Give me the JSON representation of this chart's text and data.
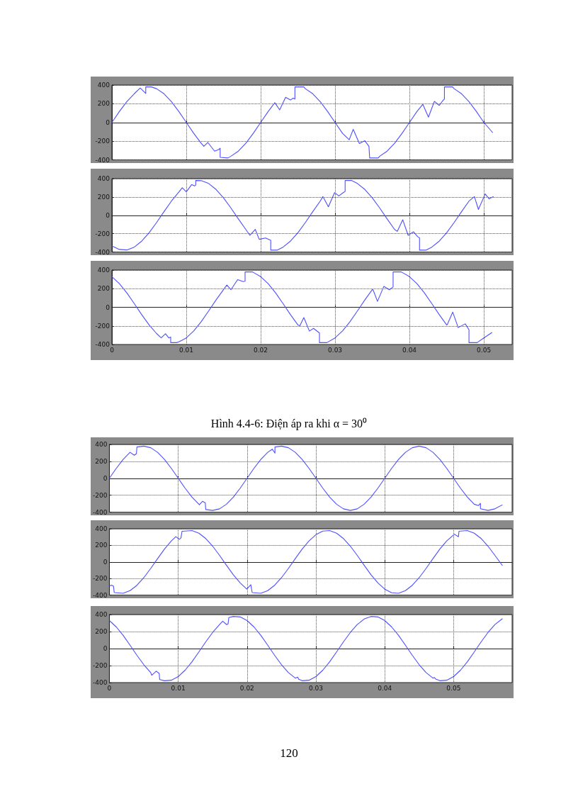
{
  "chart_data": [
    {
      "type": "line",
      "color": "#4f4fff",
      "xlim": [
        0,
        0.0538
      ],
      "xticks": [
        0,
        0.01,
        0.02,
        0.03,
        0.04,
        0.05
      ],
      "ylim": [
        -400,
        400
      ],
      "yticks": [
        -400,
        -200,
        0,
        200,
        400
      ],
      "grid": true,
      "tick_labels": "y",
      "x": [
        0,
        0.001,
        0.002,
        0.003,
        0.0038,
        0.00455,
        0.00455,
        0.0053,
        0.006,
        0.007,
        0.008,
        0.009,
        0.01,
        0.011,
        0.012,
        0.01236,
        0.0129,
        0.0138,
        0.01436,
        0.01455,
        0.01455,
        0.0156,
        0.016,
        0.017,
        0.018,
        0.019,
        0.02,
        0.021,
        0.0219,
        0.02255,
        0.02335,
        0.024,
        0.02436,
        0.0246,
        0.0246,
        0.0258,
        0.026,
        0.027,
        0.028,
        0.029,
        0.03,
        0.031,
        0.0319,
        0.03244,
        0.03327,
        0.034,
        0.03455,
        0.03465,
        0.0358,
        0.036,
        0.037,
        0.038,
        0.039,
        0.04,
        0.041,
        0.0418,
        0.04255,
        0.04335,
        0.044,
        0.04455,
        0.0447,
        0.0447,
        0.0458,
        0.046,
        0.047,
        0.048,
        0.049,
        0.05,
        0.0512
      ],
      "values": [
        0,
        117,
        223,
        307,
        368,
        310,
        380,
        380,
        361,
        307,
        223,
        117,
        0,
        -117,
        -223,
        -255,
        -214,
        -307,
        -290,
        -275,
        -374,
        -380,
        -361,
        -307,
        -223,
        -117,
        0,
        117,
        211,
        135,
        269,
        240,
        260,
        250,
        380,
        380,
        361,
        307,
        223,
        117,
        0,
        -117,
        -185,
        -74,
        -226,
        -196,
        -255,
        -380,
        -380,
        -361,
        -307,
        -223,
        -117,
        0,
        117,
        194,
        57,
        226,
        182,
        240,
        250,
        380,
        380,
        361,
        307,
        223,
        117,
        0,
        -110
      ]
    },
    {
      "type": "line",
      "color": "#4f4fff",
      "xlim": [
        0,
        0.0538
      ],
      "xticks": [
        0,
        0.01,
        0.02,
        0.03,
        0.04,
        0.05
      ],
      "ylim": [
        -400,
        400
      ],
      "yticks": [
        -400,
        -200,
        0,
        200,
        400
      ],
      "grid": true,
      "tick_labels": "y",
      "x": [
        0,
        0.001,
        0.002,
        0.003,
        0.004,
        0.005,
        0.006,
        0.007,
        0.008,
        0.009,
        0.00945,
        0.01,
        0.01073,
        0.0111,
        0.01127,
        0.01127,
        0.012,
        0.013,
        0.014,
        0.015,
        0.016,
        0.017,
        0.018,
        0.01855,
        0.01927,
        0.0198,
        0.02065,
        0.02135,
        0.02135,
        0.0222,
        0.023,
        0.024,
        0.025,
        0.026,
        0.027,
        0.028,
        0.02836,
        0.0291,
        0.02993,
        0.0305,
        0.0311,
        0.03135,
        0.03135,
        0.0322,
        0.033,
        0.034,
        0.035,
        0.036,
        0.037,
        0.038,
        0.03836,
        0.0391,
        0.03982,
        0.04055,
        0.0411,
        0.04135,
        0.04135,
        0.0422,
        0.043,
        0.044,
        0.045,
        0.046,
        0.047,
        0.048,
        0.04873,
        0.04927,
        0.05018,
        0.0507,
        0.0513
      ],
      "values": [
        -335,
        -372,
        -378,
        -347,
        -282,
        -190,
        -79,
        40,
        155,
        254,
        300,
        256,
        335,
        320,
        330,
        380,
        378,
        347,
        282,
        190,
        79,
        -40,
        -155,
        -218,
        -154,
        -262,
        -247,
        -273,
        -380,
        -380,
        -347,
        -282,
        -190,
        -79,
        40,
        155,
        204,
        93,
        247,
        212,
        247,
        260,
        380,
        380,
        347,
        282,
        190,
        79,
        -40,
        -155,
        -175,
        -49,
        -218,
        -180,
        -233,
        -245,
        -380,
        -380,
        -347,
        -282,
        -190,
        -79,
        40,
        155,
        204,
        64,
        233,
        180,
        204
      ]
    },
    {
      "type": "line",
      "color": "#4f4fff",
      "xlim": [
        0,
        0.0538
      ],
      "xticks": [
        0,
        0.01,
        0.02,
        0.03,
        0.04,
        0.05
      ],
      "ylim": [
        -400,
        400
      ],
      "yticks": [
        -400,
        -200,
        0,
        200,
        400
      ],
      "grid": true,
      "annotations": [
        "Hình 4.4-6: Điện áp ra khi α = 30⁰"
      ],
      "x": [
        0,
        0.001,
        0.002,
        0.003,
        0.004,
        0.005,
        0.006,
        0.00662,
        0.0072,
        0.00764,
        0.0079,
        0.0079,
        0.0087,
        0.009,
        0.01,
        0.011,
        0.012,
        0.013,
        0.014,
        0.015,
        0.01545,
        0.016,
        0.0169,
        0.01764,
        0.0179,
        0.0179,
        0.0189,
        0.02,
        0.021,
        0.022,
        0.023,
        0.024,
        0.025,
        0.02527,
        0.0258,
        0.02655,
        0.0271,
        0.0279,
        0.0279,
        0.0289,
        0.03,
        0.031,
        0.032,
        0.033,
        0.034,
        0.035,
        0.0351,
        0.0357,
        0.03655,
        0.0373,
        0.0378,
        0.0378,
        0.0389,
        0.04,
        0.041,
        0.042,
        0.043,
        0.044,
        0.045,
        0.0451,
        0.04582,
        0.04655,
        0.0475,
        0.048,
        0.048,
        0.0491,
        0.05,
        0.0511
      ],
      "values": [
        329,
        254,
        155,
        40,
        -79,
        -190,
        -282,
        -329,
        -285,
        -329,
        -320,
        -380,
        -380,
        -372,
        -329,
        -254,
        -155,
        -40,
        79,
        190,
        239,
        189,
        297,
        276,
        280,
        380,
        380,
        329,
        254,
        155,
        40,
        -79,
        -190,
        -198,
        -111,
        -256,
        -227,
        -276,
        -380,
        -380,
        -329,
        -254,
        -155,
        -40,
        79,
        190,
        189,
        64,
        224,
        189,
        218,
        380,
        380,
        329,
        254,
        155,
        40,
        -79,
        -190,
        -183,
        -52,
        -218,
        -178,
        -242,
        -380,
        -380,
        -329,
        -270
      ]
    },
    {
      "type": "line",
      "color": "#4f4fff",
      "xlim": [
        0,
        0.0585
      ],
      "xticks": [
        0,
        0.01,
        0.02,
        0.03,
        0.04,
        0.05
      ],
      "ylim": [
        -400,
        400
      ],
      "yticks": [
        -400,
        -200,
        0,
        200,
        400
      ],
      "grid": true,
      "tick_labels": "y",
      "x": [
        0,
        0.001,
        0.002,
        0.003,
        0.00304,
        0.00362,
        0.00393,
        0.004,
        0.005,
        0.006,
        0.007,
        0.008,
        0.009,
        0.01,
        0.011,
        0.012,
        0.013,
        0.01307,
        0.01354,
        0.01393,
        0.014,
        0.015,
        0.016,
        0.017,
        0.018,
        0.019,
        0.02,
        0.021,
        0.022,
        0.023,
        0.02366,
        0.02405,
        0.02405,
        0.025,
        0.026,
        0.027,
        0.028,
        0.029,
        0.03,
        0.031,
        0.032,
        0.033,
        0.034,
        0.035,
        0.036,
        0.037,
        0.038,
        0.039,
        0.04,
        0.041,
        0.042,
        0.043,
        0.044,
        0.045,
        0.046,
        0.047,
        0.048,
        0.049,
        0.05,
        0.051,
        0.052,
        0.053,
        0.05362,
        0.0539,
        0.0539,
        0.055,
        0.056,
        0.0571
      ],
      "values": [
        0,
        117,
        223,
        307,
        307,
        272,
        291,
        370,
        380,
        361,
        307,
        223,
        117,
        0,
        -117,
        -223,
        -307,
        -313,
        -272,
        -291,
        -370,
        -380,
        -361,
        -307,
        -223,
        -117,
        0,
        117,
        223,
        307,
        344,
        297,
        370,
        380,
        361,
        307,
        223,
        117,
        0,
        -117,
        -223,
        -307,
        -361,
        -380,
        -361,
        -307,
        -223,
        -117,
        0,
        117,
        223,
        307,
        361,
        380,
        361,
        307,
        223,
        117,
        0,
        -117,
        -223,
        -307,
        -322,
        -297,
        -360,
        -380,
        -361,
        -313
      ]
    },
    {
      "type": "line",
      "color": "#4f4fff",
      "xlim": [
        0,
        0.0585
      ],
      "xticks": [
        0,
        0.01,
        0.02,
        0.03,
        0.04,
        0.05
      ],
      "ylim": [
        -400,
        400
      ],
      "yticks": [
        -400,
        -200,
        0,
        200,
        400
      ],
      "grid": true,
      "tick_labels": "y",
      "x": [
        0,
        0.0003,
        0.0006,
        0.0007,
        0.001,
        0.002,
        0.003,
        0.004,
        0.005,
        0.006,
        0.007,
        0.008,
        0.009,
        0.00965,
        0.01016,
        0.0104,
        0.01055,
        0.011,
        0.012,
        0.013,
        0.014,
        0.015,
        0.016,
        0.017,
        0.018,
        0.019,
        0.01996,
        0.02054,
        0.02074,
        0.021,
        0.022,
        0.023,
        0.024,
        0.025,
        0.026,
        0.027,
        0.028,
        0.029,
        0.03,
        0.031,
        0.032,
        0.033,
        0.034,
        0.035,
        0.036,
        0.037,
        0.038,
        0.039,
        0.04,
        0.041,
        0.042,
        0.043,
        0.044,
        0.045,
        0.046,
        0.047,
        0.048,
        0.049,
        0.05012,
        0.0507,
        0.05078,
        0.051,
        0.052,
        0.053,
        0.054,
        0.055,
        0.056,
        0.0571
      ],
      "values": [
        -290,
        -280,
        -293,
        -370,
        -372,
        -378,
        -347,
        -282,
        -190,
        -79,
        40,
        155,
        254,
        305,
        273,
        290,
        370,
        372,
        378,
        347,
        282,
        190,
        79,
        -40,
        -155,
        -254,
        -329,
        -275,
        -370,
        -372,
        -378,
        -347,
        -282,
        -190,
        -79,
        40,
        155,
        254,
        329,
        372,
        378,
        347,
        282,
        190,
        79,
        -40,
        -155,
        -254,
        -329,
        -372,
        -378,
        -347,
        -282,
        -190,
        -79,
        40,
        155,
        254,
        335,
        304,
        370,
        372,
        378,
        347,
        282,
        190,
        79,
        -45
      ]
    },
    {
      "type": "line",
      "color": "#4f4fff",
      "xlim": [
        0,
        0.0585
      ],
      "xticks": [
        0,
        0.01,
        0.02,
        0.03,
        0.04,
        0.05
      ],
      "ylim": [
        -400,
        400
      ],
      "yticks": [
        -400,
        -200,
        0,
        200,
        400
      ],
      "grid": true,
      "annotations": [
        "120"
      ],
      "x": [
        0,
        0.001,
        0.002,
        0.003,
        0.004,
        0.005,
        0.006,
        0.00615,
        0.00681,
        0.00724,
        0.0073,
        0.008,
        0.009,
        0.01,
        0.011,
        0.012,
        0.013,
        0.014,
        0.015,
        0.016,
        0.01646,
        0.01704,
        0.01724,
        0.01735,
        0.018,
        0.019,
        0.02,
        0.021,
        0.022,
        0.023,
        0.024,
        0.025,
        0.026,
        0.027,
        0.02735,
        0.0275,
        0.028,
        0.029,
        0.03,
        0.031,
        0.032,
        0.033,
        0.034,
        0.035,
        0.036,
        0.037,
        0.038,
        0.039,
        0.04,
        0.041,
        0.042,
        0.043,
        0.044,
        0.045,
        0.046,
        0.047,
        0.0472,
        0.0474,
        0.048,
        0.049,
        0.05,
        0.051,
        0.052,
        0.053,
        0.054,
        0.055,
        0.056,
        0.0571
      ],
      "values": [
        329,
        254,
        155,
        40,
        -79,
        -190,
        -282,
        -313,
        -266,
        -294,
        -365,
        -378,
        -372,
        -329,
        -254,
        -155,
        -40,
        79,
        190,
        282,
        322,
        281,
        291,
        365,
        378,
        372,
        329,
        254,
        155,
        40,
        -79,
        -190,
        -282,
        -347,
        -335,
        -360,
        -378,
        -372,
        -329,
        -254,
        -155,
        -40,
        79,
        190,
        282,
        347,
        378,
        372,
        329,
        254,
        155,
        40,
        -79,
        -190,
        -282,
        -347,
        -340,
        -358,
        -378,
        -372,
        -329,
        -254,
        -155,
        -40,
        79,
        190,
        282,
        352
      ]
    }
  ]
}
